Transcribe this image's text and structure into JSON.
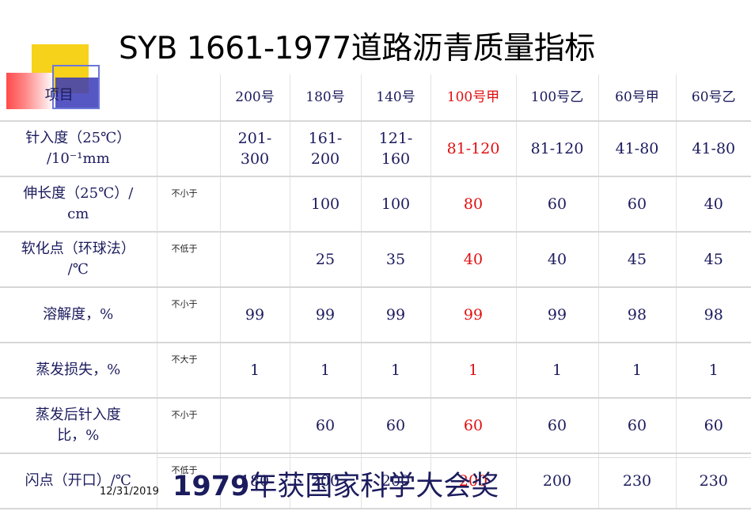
{
  "slide": {
    "title": "SYB 1661-1977道路沥青质量指标",
    "date": "12/31/2019",
    "award_year": "1979",
    "award_text": "年获国家科学大会奖"
  },
  "table": {
    "item_header": "项目",
    "grades": [
      "200号",
      "180号",
      "140号",
      "100号甲",
      "100号乙",
      "60号甲",
      "60号乙"
    ],
    "highlight_color": "#e01010",
    "rows": [
      {
        "label_1": "针入度（25℃）",
        "label_2": "/10⁻¹mm",
        "cond": "",
        "values": [
          "201-\n300",
          "161-\n200",
          "121-\n160",
          "81-120",
          "81-120",
          "41-80",
          "41-80"
        ]
      },
      {
        "label_1": "伸长度（25℃）/",
        "label_2": "cm",
        "cond": "不小于",
        "values": [
          "",
          "100",
          "100",
          "80",
          "60",
          "60",
          "40"
        ]
      },
      {
        "label_1": "软化点（环球法）",
        "label_2": "/℃",
        "cond": "不低于",
        "values": [
          "",
          "25",
          "35",
          "40",
          "40",
          "45",
          "45"
        ]
      },
      {
        "label_1": "溶解度，%",
        "label_2": "",
        "cond": "不小于",
        "values": [
          "99",
          "99",
          "99",
          "99",
          "99",
          "98",
          "98"
        ]
      },
      {
        "label_1": "蒸发损失，%",
        "label_2": "",
        "cond": "不大于",
        "values": [
          "1",
          "1",
          "1",
          "1",
          "1",
          "1",
          "1"
        ]
      },
      {
        "label_1": "蒸发后针入度",
        "label_2": "比，%",
        "cond": "不小于",
        "values": [
          "",
          "60",
          "60",
          "60",
          "60",
          "60",
          "60"
        ]
      },
      {
        "label_1": "闪点（开口）/℃",
        "label_2": "",
        "cond": "不低于",
        "values": [
          "180",
          "200",
          "200",
          "200",
          "200",
          "230",
          "230"
        ]
      }
    ]
  }
}
